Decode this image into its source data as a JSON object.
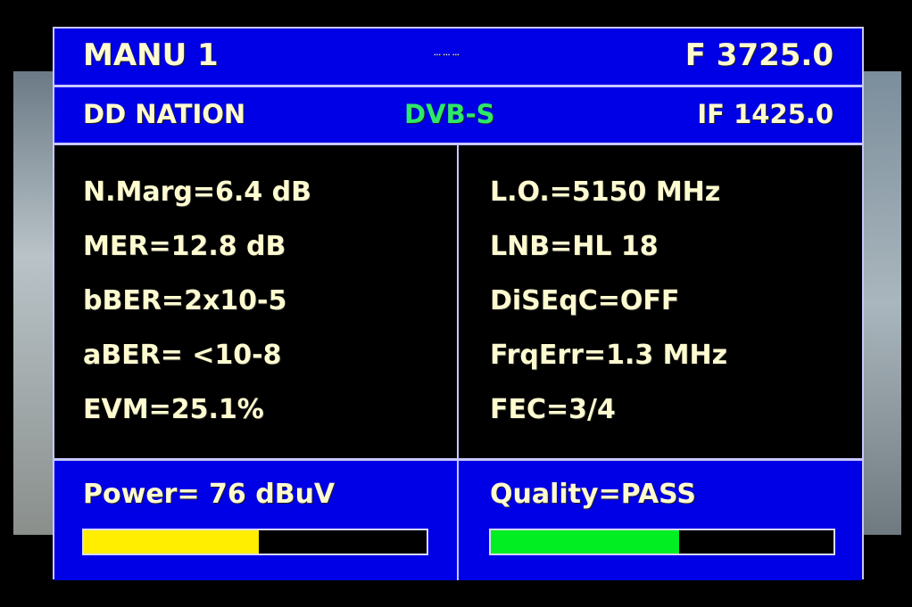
{
  "header": {
    "mode": "MANU 1",
    "indicator": "··· ··· ···",
    "frequency": "F 3725.0",
    "channel": "DD NATION",
    "standard": "DVB-S",
    "if_freq": "IF 1425.0"
  },
  "left": [
    "N.Marg=6.4 dB",
    "MER=12.8 dB",
    "bBER=2x10-5",
    "aBER= <10-8",
    "EVM=25.1%"
  ],
  "right": [
    "L.O.=5150 MHz",
    "LNB=HL 18",
    "DiSEqC=OFF",
    "FrqErr=1.3 MHz",
    "FEC=3/4"
  ],
  "power": {
    "label": "Power= 76 dBuV",
    "level_percent": 51,
    "color": "#ffee00"
  },
  "quality": {
    "label": "Quality=PASS",
    "level_percent": 55,
    "color": "#00ee22"
  },
  "colors": {
    "panel": "#0000e6",
    "text": "#fffbd0",
    "standard": "#2ee86a"
  }
}
